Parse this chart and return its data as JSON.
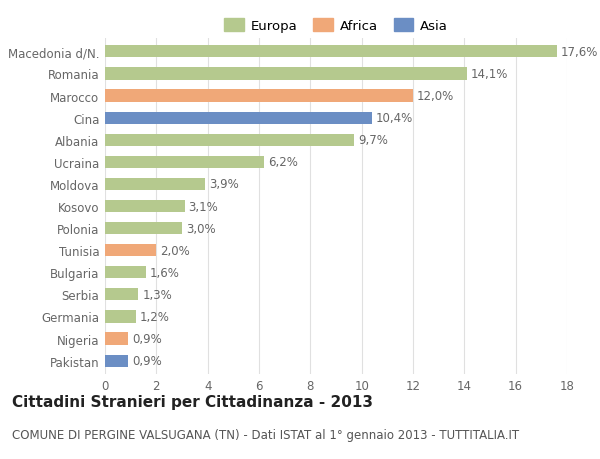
{
  "countries": [
    "Macedonia d/N.",
    "Romania",
    "Marocco",
    "Cina",
    "Albania",
    "Ucraina",
    "Moldova",
    "Kosovo",
    "Polonia",
    "Tunisia",
    "Bulgaria",
    "Serbia",
    "Germania",
    "Nigeria",
    "Pakistan"
  ],
  "values": [
    17.6,
    14.1,
    12.0,
    10.4,
    9.7,
    6.2,
    3.9,
    3.1,
    3.0,
    2.0,
    1.6,
    1.3,
    1.2,
    0.9,
    0.9
  ],
  "labels": [
    "17,6%",
    "14,1%",
    "12,0%",
    "10,4%",
    "9,7%",
    "6,2%",
    "3,9%",
    "3,1%",
    "3,0%",
    "2,0%",
    "1,6%",
    "1,3%",
    "1,2%",
    "0,9%",
    "0,9%"
  ],
  "continent": [
    "Europa",
    "Europa",
    "Africa",
    "Asia",
    "Europa",
    "Europa",
    "Europa",
    "Europa",
    "Europa",
    "Africa",
    "Europa",
    "Europa",
    "Europa",
    "Africa",
    "Asia"
  ],
  "colors": {
    "Europa": "#b5c98e",
    "Africa": "#f0a878",
    "Asia": "#6b8ec4"
  },
  "title": "Cittadini Stranieri per Cittadinanza - 2013",
  "subtitle": "COMUNE DI PERGINE VALSUGANA (TN) - Dati ISTAT al 1° gennaio 2013 - TUTTITALIA.IT",
  "xlim": [
    0,
    18
  ],
  "xticks": [
    0,
    2,
    4,
    6,
    8,
    10,
    12,
    14,
    16,
    18
  ],
  "background_color": "#ffffff",
  "grid_color": "#e0e0e0",
  "bar_height": 0.55,
  "label_fontsize": 8.5,
  "tick_fontsize": 8.5,
  "title_fontsize": 11,
  "subtitle_fontsize": 8.5
}
